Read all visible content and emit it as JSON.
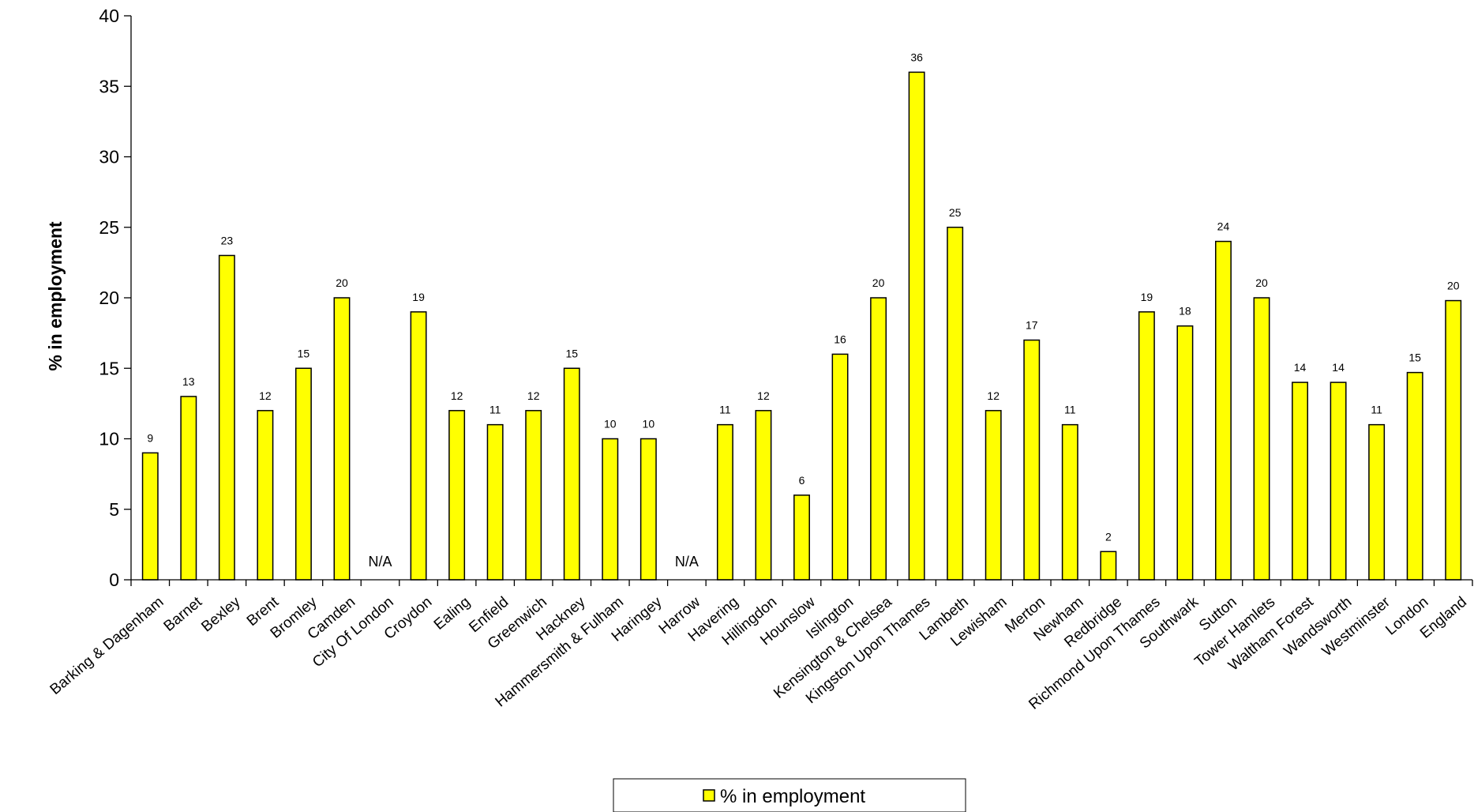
{
  "chart_data": {
    "type": "bar",
    "ylabel": "% in employment",
    "ylim": [
      0,
      40
    ],
    "yticks": [
      0,
      5,
      10,
      15,
      20,
      25,
      30,
      35,
      40
    ],
    "grid": false,
    "legend_position": "bottom-center",
    "categories": [
      "Barking & Dagenham",
      "Barnet",
      "Bexley",
      "Brent",
      "Bromley",
      "Camden",
      "City Of London",
      "Croydon",
      "Ealing",
      "Enfield",
      "Greenwich",
      "Hackney",
      "Hammersmith & Fulham",
      "Haringey",
      "Harrow",
      "Havering",
      "Hillingdon",
      "Hounslow",
      "Islington",
      "Kensington & Chelsea",
      "Kingston Upon Thames",
      "Lambeth",
      "Lewisham",
      "Merton",
      "Newham",
      "Redbridge",
      "Richmond Upon Thames",
      "Southwark",
      "Sutton",
      "Tower Hamlets",
      "Waltham Forest",
      "Wandsworth",
      "Westminster",
      "London",
      "England"
    ],
    "series": [
      {
        "name": "% in employment",
        "color": "#ffff00",
        "values": [
          9,
          13,
          23,
          12,
          15,
          20,
          null,
          19,
          12,
          11,
          12,
          15,
          10,
          10,
          null,
          11,
          12,
          6,
          16,
          20,
          36,
          25,
          12,
          17,
          11,
          2,
          19,
          18,
          24,
          20,
          14,
          14,
          11,
          14.7,
          19.8
        ],
        "data_labels": [
          "9",
          "13",
          "23",
          "12",
          "15",
          "20",
          "N/A",
          "19",
          "12",
          "11",
          "12",
          "15",
          "10",
          "10",
          "N/A",
          "11",
          "12",
          "6",
          "16",
          "20",
          "36",
          "25",
          "12",
          "17",
          "11",
          "2",
          "19",
          "18",
          "24",
          "20",
          "14",
          "14",
          "11",
          "15",
          "20"
        ]
      }
    ]
  }
}
